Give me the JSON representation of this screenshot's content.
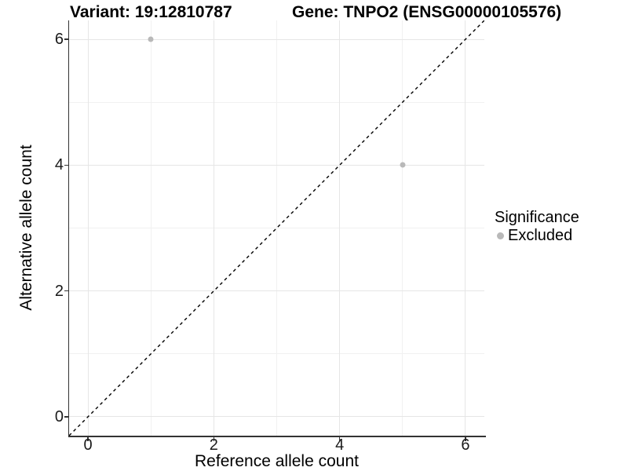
{
  "header": {
    "variant_title": "Variant: 19:12810787",
    "gene_title": "Gene: TNPO2 (ENSG00000105576)"
  },
  "axes": {
    "x_label": "Reference allele count",
    "y_label": "Alternative allele count"
  },
  "legend": {
    "title": "Significance",
    "items": [
      {
        "label": "Excluded",
        "color": "#b9b9b9"
      }
    ]
  },
  "colors": {
    "point": "#b9b9b9",
    "grid_major": "#e6e6e6",
    "grid_minor": "#f1f1f1",
    "axis_line": "#333333",
    "reference_line": "#000000"
  },
  "chart_data": {
    "type": "scatter",
    "title": "Variant: 19:12810787 — Gene: TNPO2 (ENSG00000105576)",
    "xlabel": "Reference allele count",
    "ylabel": "Alternative allele count",
    "xlim": [
      -0.3,
      6.3
    ],
    "ylim": [
      -0.3,
      6.3
    ],
    "x_ticks": [
      0,
      2,
      4,
      6
    ],
    "y_ticks": [
      0,
      2,
      4,
      6
    ],
    "x_minor_ticks": [
      1,
      3,
      5
    ],
    "y_minor_ticks": [
      1,
      3,
      5
    ],
    "grid": "on",
    "legend_position": "right",
    "series": [
      {
        "name": "Excluded",
        "color": "#b9b9b9",
        "points": [
          {
            "x": 1,
            "y": 6
          },
          {
            "x": 5,
            "y": 4
          }
        ]
      }
    ],
    "reference_line": {
      "slope": 1,
      "intercept": 0,
      "style": "dashed"
    }
  }
}
